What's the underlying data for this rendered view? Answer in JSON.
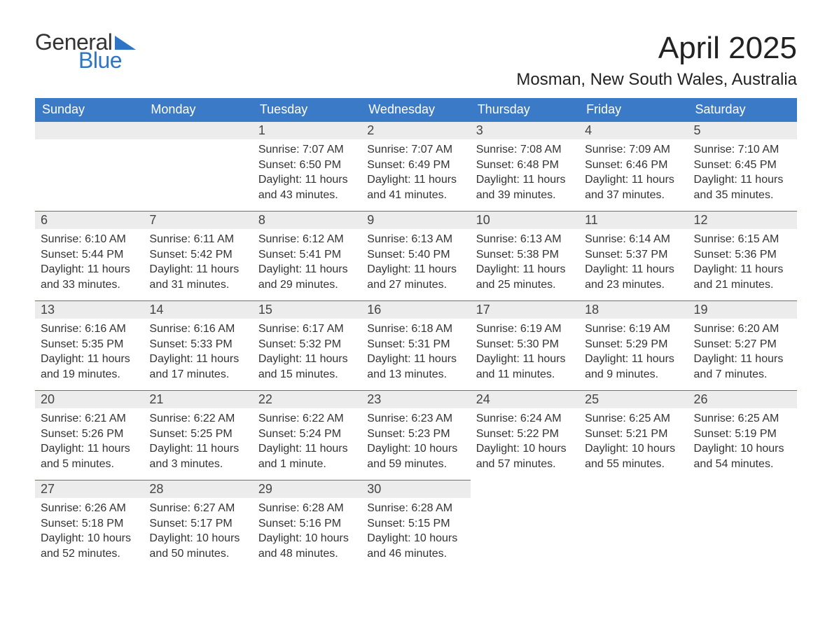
{
  "logo": {
    "text1": "General",
    "text2": "Blue",
    "tri_color": "#2e75c6"
  },
  "title": "April 2025",
  "location": "Mosman, New South Wales, Australia",
  "colors": {
    "header_bg": "#3a7ac6",
    "header_text": "#ffffff",
    "daynum_bg": "#ececec",
    "row_border": "#3a7ac6",
    "body_text": "#333333",
    "page_bg": "#ffffff"
  },
  "fonts": {
    "title_pt": 44,
    "location_pt": 24,
    "th_pt": 18,
    "daynum_pt": 18,
    "body_pt": 16
  },
  "table": {
    "type": "calendar",
    "columns": [
      "Sunday",
      "Monday",
      "Tuesday",
      "Wednesday",
      "Thursday",
      "Friday",
      "Saturday"
    ],
    "weeks": [
      [
        null,
        null,
        {
          "n": "1",
          "sr": "7:07 AM",
          "ss": "6:50 PM",
          "dl": "11 hours and 43 minutes."
        },
        {
          "n": "2",
          "sr": "7:07 AM",
          "ss": "6:49 PM",
          "dl": "11 hours and 41 minutes."
        },
        {
          "n": "3",
          "sr": "7:08 AM",
          "ss": "6:48 PM",
          "dl": "11 hours and 39 minutes."
        },
        {
          "n": "4",
          "sr": "7:09 AM",
          "ss": "6:46 PM",
          "dl": "11 hours and 37 minutes."
        },
        {
          "n": "5",
          "sr": "7:10 AM",
          "ss": "6:45 PM",
          "dl": "11 hours and 35 minutes."
        }
      ],
      [
        {
          "n": "6",
          "sr": "6:10 AM",
          "ss": "5:44 PM",
          "dl": "11 hours and 33 minutes."
        },
        {
          "n": "7",
          "sr": "6:11 AM",
          "ss": "5:42 PM",
          "dl": "11 hours and 31 minutes."
        },
        {
          "n": "8",
          "sr": "6:12 AM",
          "ss": "5:41 PM",
          "dl": "11 hours and 29 minutes."
        },
        {
          "n": "9",
          "sr": "6:13 AM",
          "ss": "5:40 PM",
          "dl": "11 hours and 27 minutes."
        },
        {
          "n": "10",
          "sr": "6:13 AM",
          "ss": "5:38 PM",
          "dl": "11 hours and 25 minutes."
        },
        {
          "n": "11",
          "sr": "6:14 AM",
          "ss": "5:37 PM",
          "dl": "11 hours and 23 minutes."
        },
        {
          "n": "12",
          "sr": "6:15 AM",
          "ss": "5:36 PM",
          "dl": "11 hours and 21 minutes."
        }
      ],
      [
        {
          "n": "13",
          "sr": "6:16 AM",
          "ss": "5:35 PM",
          "dl": "11 hours and 19 minutes."
        },
        {
          "n": "14",
          "sr": "6:16 AM",
          "ss": "5:33 PM",
          "dl": "11 hours and 17 minutes."
        },
        {
          "n": "15",
          "sr": "6:17 AM",
          "ss": "5:32 PM",
          "dl": "11 hours and 15 minutes."
        },
        {
          "n": "16",
          "sr": "6:18 AM",
          "ss": "5:31 PM",
          "dl": "11 hours and 13 minutes."
        },
        {
          "n": "17",
          "sr": "6:19 AM",
          "ss": "5:30 PM",
          "dl": "11 hours and 11 minutes."
        },
        {
          "n": "18",
          "sr": "6:19 AM",
          "ss": "5:29 PM",
          "dl": "11 hours and 9 minutes."
        },
        {
          "n": "19",
          "sr": "6:20 AM",
          "ss": "5:27 PM",
          "dl": "11 hours and 7 minutes."
        }
      ],
      [
        {
          "n": "20",
          "sr": "6:21 AM",
          "ss": "5:26 PM",
          "dl": "11 hours and 5 minutes."
        },
        {
          "n": "21",
          "sr": "6:22 AM",
          "ss": "5:25 PM",
          "dl": "11 hours and 3 minutes."
        },
        {
          "n": "22",
          "sr": "6:22 AM",
          "ss": "5:24 PM",
          "dl": "11 hours and 1 minute."
        },
        {
          "n": "23",
          "sr": "6:23 AM",
          "ss": "5:23 PM",
          "dl": "10 hours and 59 minutes."
        },
        {
          "n": "24",
          "sr": "6:24 AM",
          "ss": "5:22 PM",
          "dl": "10 hours and 57 minutes."
        },
        {
          "n": "25",
          "sr": "6:25 AM",
          "ss": "5:21 PM",
          "dl": "10 hours and 55 minutes."
        },
        {
          "n": "26",
          "sr": "6:25 AM",
          "ss": "5:19 PM",
          "dl": "10 hours and 54 minutes."
        }
      ],
      [
        {
          "n": "27",
          "sr": "6:26 AM",
          "ss": "5:18 PM",
          "dl": "10 hours and 52 minutes."
        },
        {
          "n": "28",
          "sr": "6:27 AM",
          "ss": "5:17 PM",
          "dl": "10 hours and 50 minutes."
        },
        {
          "n": "29",
          "sr": "6:28 AM",
          "ss": "5:16 PM",
          "dl": "10 hours and 48 minutes."
        },
        {
          "n": "30",
          "sr": "6:28 AM",
          "ss": "5:15 PM",
          "dl": "10 hours and 46 minutes."
        },
        null,
        null,
        null
      ]
    ]
  },
  "labels": {
    "sunrise": "Sunrise: ",
    "sunset": "Sunset: ",
    "daylight": "Daylight: "
  }
}
